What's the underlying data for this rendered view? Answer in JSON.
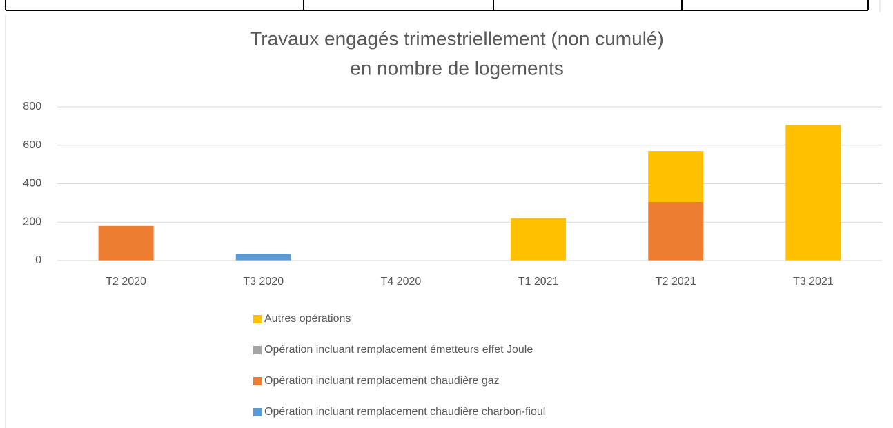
{
  "chart_data": {
    "type": "stacked_bar",
    "title": [
      "Travaux engagés trimestriellement (non cumulé)",
      "en nombre de logements"
    ],
    "categories": [
      "T2 2020",
      "T3 2020",
      "T4 2020",
      "T1 2021",
      "T2 2021",
      "T3 2021"
    ],
    "series": [
      {
        "name": "Opération incluant remplacement chaudière charbon-fioul",
        "color": "#5b9bd5",
        "values": [
          0,
          35,
          0,
          0,
          0,
          0
        ]
      },
      {
        "name": "Opération incluant remplacement chaudière gaz",
        "color": "#ed7d31",
        "values": [
          180,
          0,
          0,
          0,
          305,
          0
        ]
      },
      {
        "name": "Opération incluant remplacement émetteurs effet Joule",
        "color": "#a5a5a5",
        "values": [
          0,
          0,
          0,
          0,
          0,
          0
        ]
      },
      {
        "name": "Autres opérations",
        "color": "#ffc000",
        "values": [
          0,
          0,
          0,
          220,
          265,
          705
        ]
      }
    ],
    "ylim": [
      0,
      800
    ],
    "yticks": [
      0,
      200,
      400,
      600,
      800
    ],
    "grid": true,
    "legend": "bottom"
  }
}
